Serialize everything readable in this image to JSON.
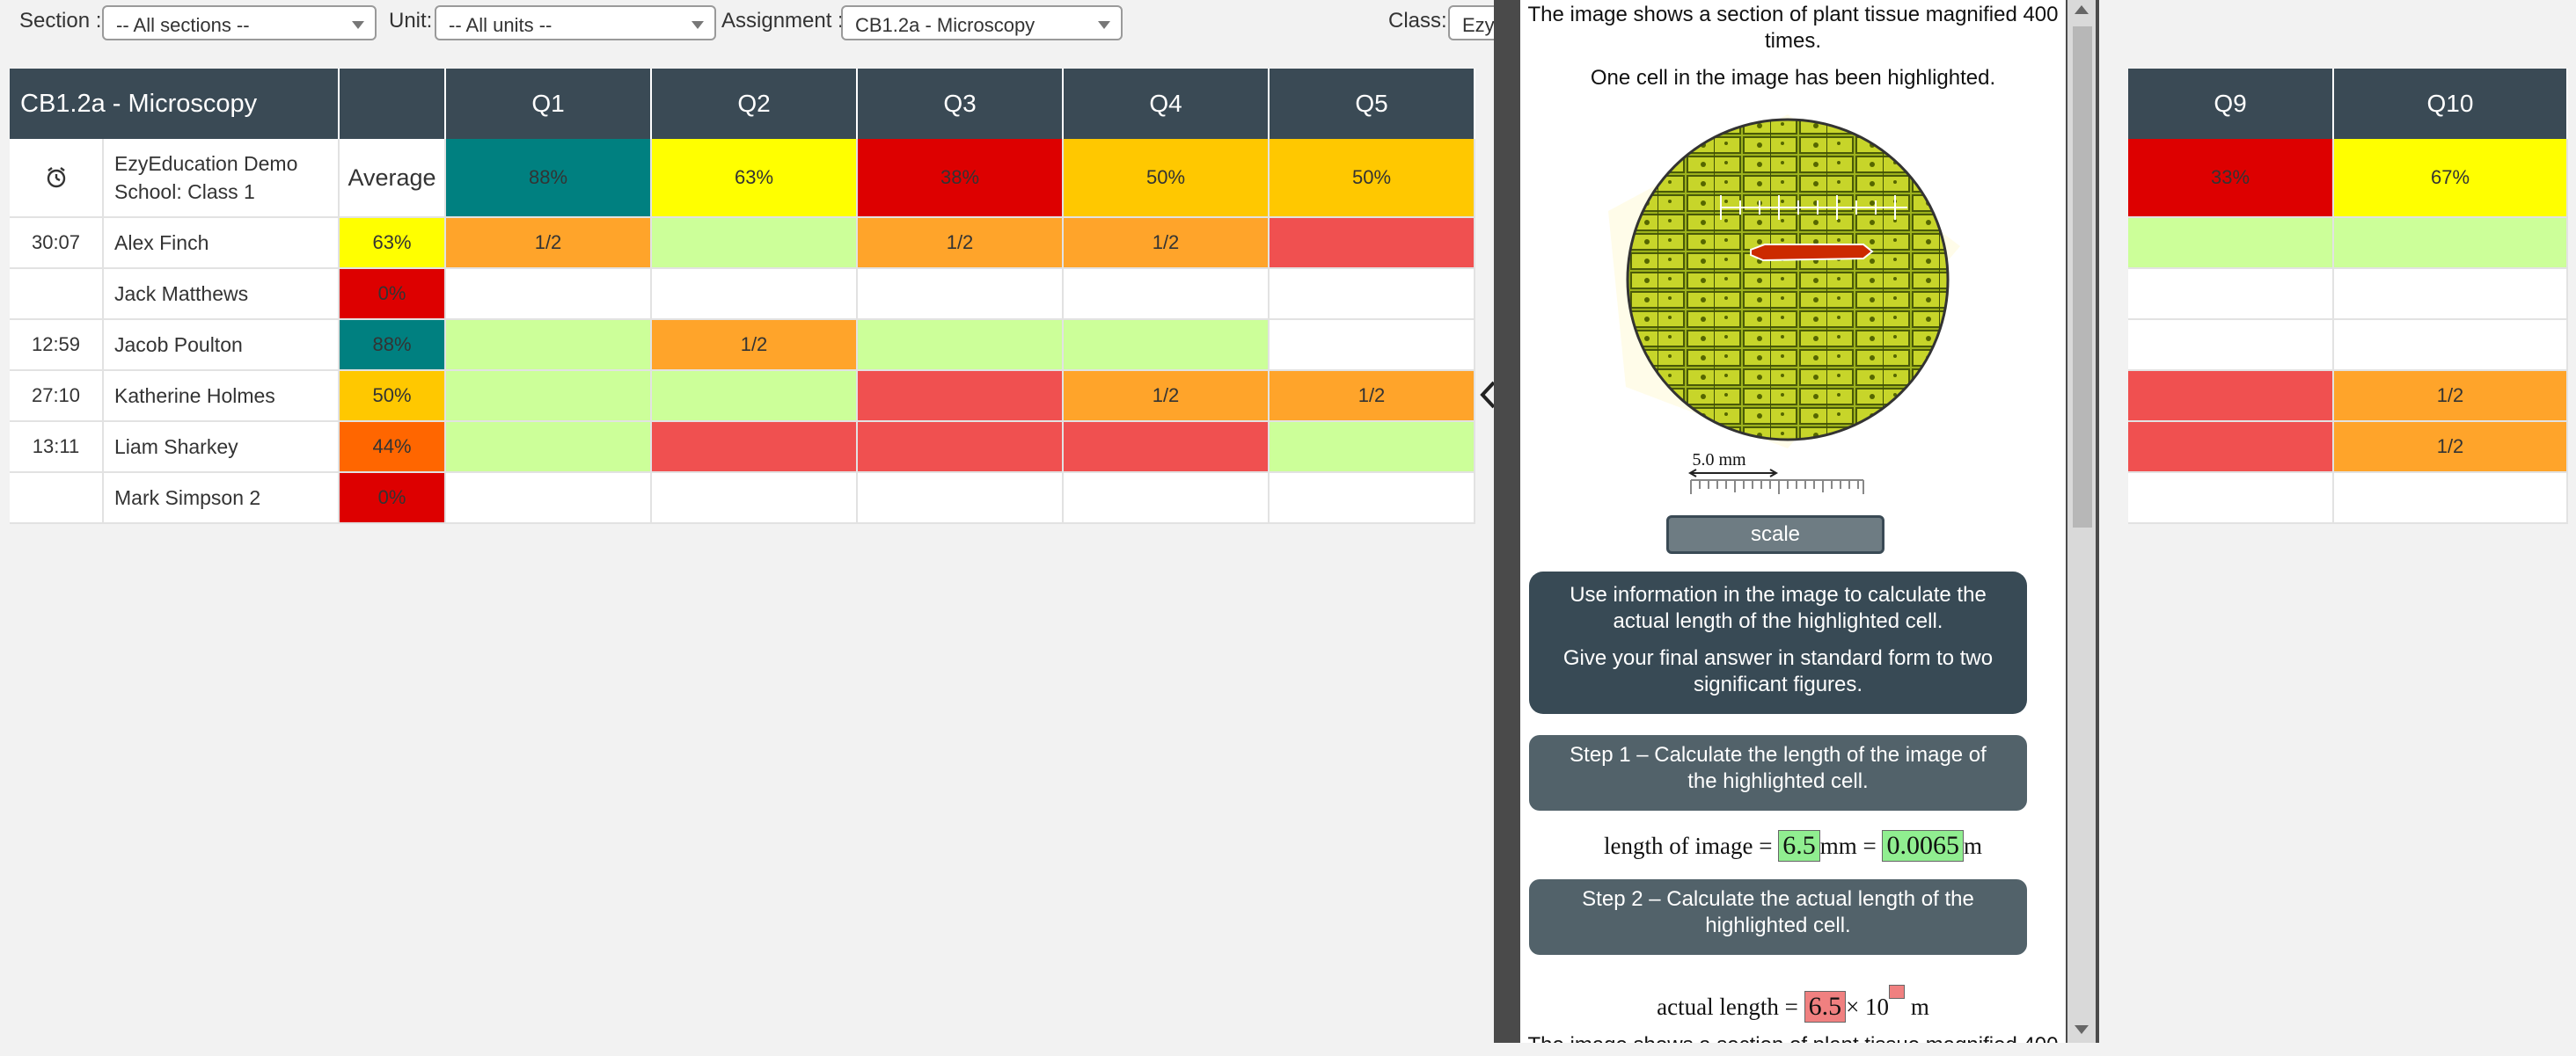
{
  "filters": {
    "section_label": "Section :",
    "section_value": "-- All sections --",
    "unit_label": "Unit:",
    "unit_value": "-- All units --",
    "assignment_label": "Assignment :",
    "assignment_value": "CB1.2a - Microscopy",
    "class_label": "Class:",
    "class_value": "Ezy"
  },
  "table": {
    "title": "CB1.2a - Microscopy",
    "questions": [
      "Q1",
      "Q2",
      "Q3",
      "Q4",
      "Q5",
      "Q9",
      "Q10"
    ],
    "summary": {
      "school": "EzyEducation Demo School: Class 1",
      "average_label": "Average",
      "scores": [
        "88%",
        "63%",
        "38%",
        "50%",
        "50%",
        "33%",
        "67%"
      ]
    },
    "rows": [
      {
        "time": "30:07",
        "name": "Alex Finch",
        "avg": "63%",
        "cells": [
          "1/2",
          "",
          "1/2",
          "1/2",
          "",
          "",
          ""
        ]
      },
      {
        "time": "",
        "name": "Jack Matthews",
        "avg": "0%",
        "cells": [
          "",
          "",
          "",
          "",
          "",
          "",
          ""
        ]
      },
      {
        "time": "12:59",
        "name": "Jacob Poulton",
        "avg": "88%",
        "cells": [
          "",
          "1/2",
          "",
          "",
          "",
          "",
          ""
        ]
      },
      {
        "time": "27:10",
        "name": "Katherine Holmes",
        "avg": "50%",
        "cells": [
          "",
          "",
          "",
          "1/2",
          "1/2",
          "",
          "1/2"
        ]
      },
      {
        "time": "13:11",
        "name": "Liam Sharkey",
        "avg": "44%",
        "cells": [
          "",
          "",
          "",
          "",
          "",
          "",
          "1/2"
        ]
      },
      {
        "time": "",
        "name": "Mark Simpson 2",
        "avg": "0%",
        "cells": [
          "",
          "",
          "",
          "",
          "",
          "",
          ""
        ]
      }
    ]
  },
  "colors": {
    "header": "#3a4a55",
    "teal": "#008080",
    "yellow": "#ffff00",
    "red": "#dd0000",
    "amber": "#ffc800",
    "orange": "#ffa42a",
    "deep_orange": "#ff6600",
    "light_green": "#ccff99",
    "light_red": "#f05050",
    "white": "#ffffff"
  },
  "modal": {
    "intro_1": "The image shows a section of plant tissue magnified 400 times.",
    "intro_2": "One cell in the image has been highlighted.",
    "scale_label": "5.0 mm",
    "scale_button": "scale",
    "instruction_1": "Use information in the image to calculate the actual length of the highlighted cell.",
    "instruction_2": "Give your final answer in standard form to two significant figures.",
    "step1": "Step 1 – Calculate the length of the image of the highlighted cell.",
    "length_of_image_label": "length of image =",
    "length_mm_value": "6.5",
    "mm_unit": "mm =",
    "length_m_value": "0.0065",
    "m_unit": "m",
    "step2": "Step 2 – Calculate the actual length of the highlighted cell.",
    "actual_length_label": "actual length =",
    "actual_value": "6.5",
    "times_ten": "× 10",
    "actual_unit": "m",
    "cutoff_text": "The image shows a section of plant tissue magnified 400"
  }
}
